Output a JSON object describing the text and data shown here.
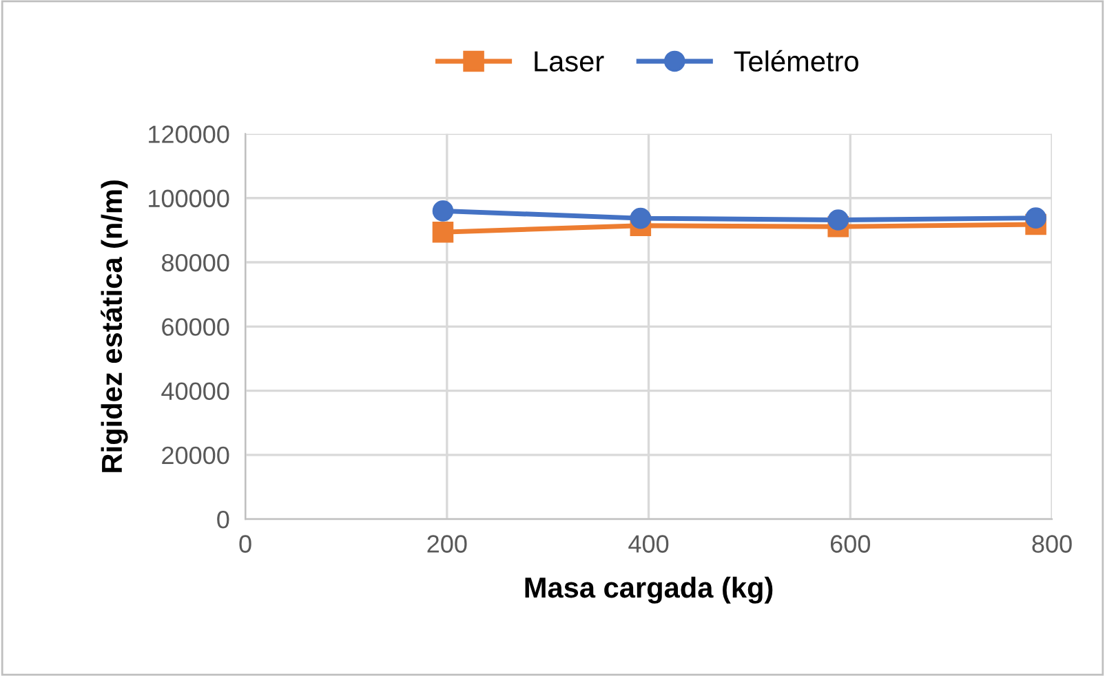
{
  "chart_data": {
    "type": "line",
    "xlabel": "Masa cargada (kg)",
    "ylabel": "Rigidez estática (n/m)",
    "x": [
      196,
      392,
      588,
      784
    ],
    "series": [
      {
        "name": "Laser",
        "color": "#ed7d31",
        "marker": "square",
        "values": [
          89400,
          91400,
          91100,
          91800
        ]
      },
      {
        "name": "Telémetro",
        "color": "#4472c4",
        "marker": "circle",
        "values": [
          96000,
          93700,
          93200,
          93800
        ]
      }
    ],
    "xlim": [
      0,
      800
    ],
    "xticks": [
      0,
      200,
      400,
      600,
      800
    ],
    "ylim": [
      0,
      120000
    ],
    "yticks": [
      0,
      20000,
      40000,
      60000,
      80000,
      100000,
      120000
    ],
    "grid": true,
    "legend": "top"
  }
}
